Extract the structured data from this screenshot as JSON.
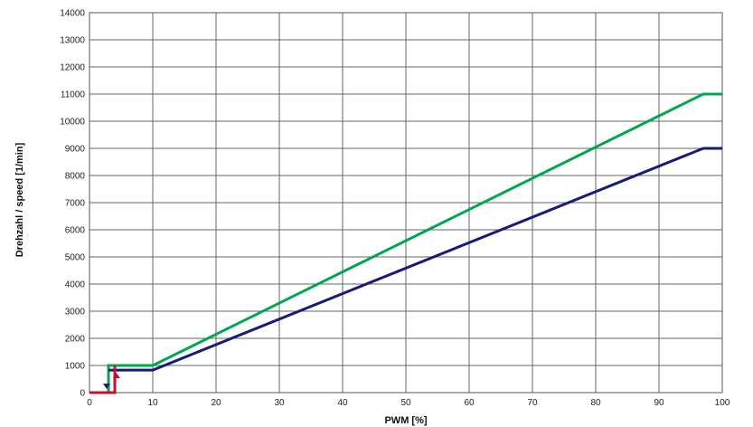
{
  "chart_data": {
    "type": "line",
    "title": "",
    "xlabel": "PWM [%]",
    "ylabel": "Drehzahl / speed [1/min]",
    "xlim": [
      0,
      100
    ],
    "ylim": [
      0,
      14000
    ],
    "xticks": [
      0,
      10,
      20,
      30,
      40,
      50,
      60,
      70,
      80,
      90,
      100
    ],
    "yticks": [
      0,
      1000,
      2000,
      3000,
      4000,
      5000,
      6000,
      7000,
      8000,
      9000,
      10000,
      11000,
      12000,
      13000,
      14000
    ],
    "grid": true,
    "series": [
      {
        "color": "#00a651",
        "points": [
          [
            3,
            0
          ],
          [
            3,
            1000
          ],
          [
            10,
            1000
          ],
          [
            97,
            11000
          ],
          [
            100,
            11000
          ]
        ]
      },
      {
        "color": "#1a1a7a",
        "points": [
          [
            3,
            830
          ],
          [
            10,
            830
          ],
          [
            97,
            9000
          ],
          [
            100,
            9000
          ]
        ],
        "arrow": {
          "x": 3,
          "direction": "down"
        }
      },
      {
        "color": "#c8102e",
        "points": [
          [
            0,
            0
          ],
          [
            4,
            0
          ],
          [
            4,
            1000
          ]
        ],
        "arrow": {
          "x": 4,
          "direction": "up"
        }
      }
    ]
  }
}
